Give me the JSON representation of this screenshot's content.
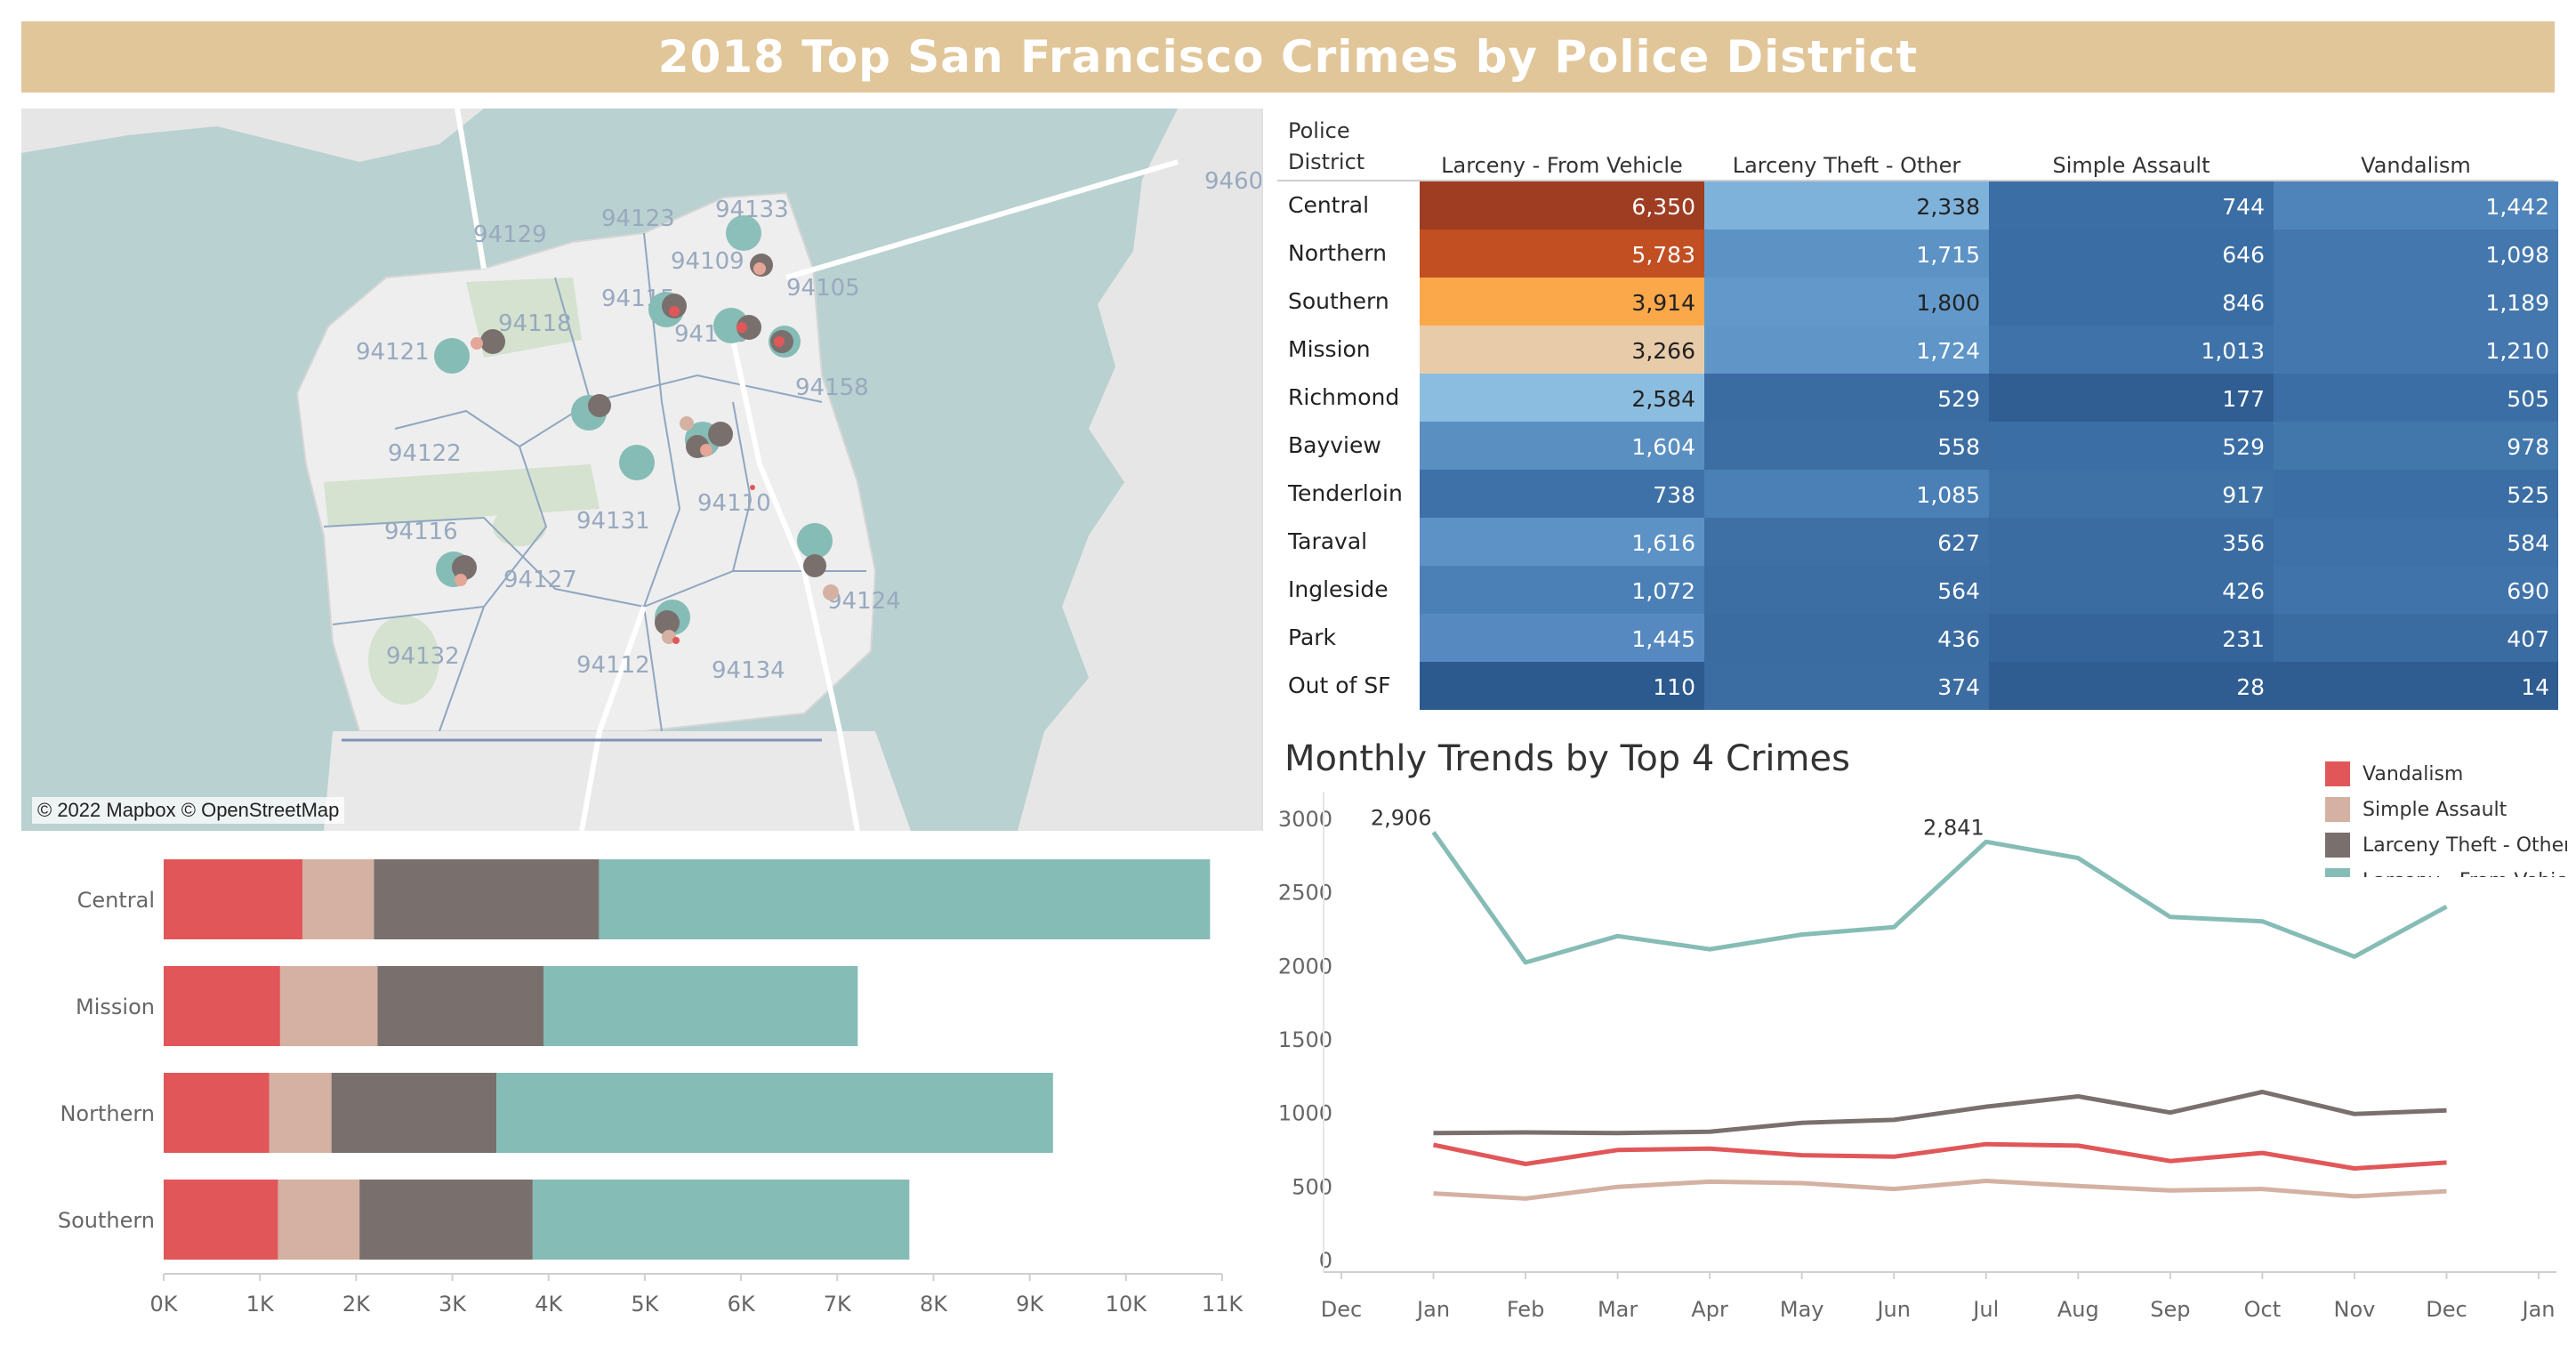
{
  "title": "2018 Top San Francisco Crimes by Police District",
  "colors": {
    "banner": "#e1c699",
    "vandalism": "#e15759",
    "simple_assault": "#d4b1a2",
    "larceny_theft_other": "#79706e",
    "larceny_from_vehicle": "#86bcb6"
  },
  "map": {
    "credit": "© 2022 Mapbox © OpenStreetMap",
    "zip_labels": [
      "94123",
      "94133",
      "94129",
      "94109",
      "94105",
      "94118",
      "94115",
      "94108",
      "94121",
      "94158",
      "94122",
      "94110",
      "94116",
      "94131",
      "94127",
      "94124",
      "94132",
      "94112",
      "94134",
      "9460"
    ],
    "markers": [
      {
        "district": "Central",
        "circles": [
          "larceny-from-vehicle",
          "larceny-theft-other",
          "simple-assault"
        ]
      },
      {
        "district": "Northern",
        "circles": [
          "larceny-from-vehicle",
          "larceny-theft-other"
        ]
      },
      {
        "district": "Southern",
        "circles": [
          "larceny-from-vehicle",
          "larceny-theft-other"
        ]
      },
      {
        "district": "Mission",
        "circles": [
          "larceny-from-vehicle",
          "larceny-theft-other"
        ]
      }
    ]
  },
  "heatmap": {
    "header_district": [
      "Police",
      "District"
    ],
    "columns": [
      "Larceny - From Vehicle",
      "Larceny Theft - Other",
      "Simple Assault",
      "Vandalism"
    ],
    "rows": [
      {
        "district": "Central",
        "values": [
          "6,350",
          "2,338",
          "744",
          "1,442"
        ]
      },
      {
        "district": "Northern",
        "values": [
          "5,783",
          "1,715",
          "646",
          "1,098"
        ]
      },
      {
        "district": "Southern",
        "values": [
          "3,914",
          "1,800",
          "846",
          "1,189"
        ]
      },
      {
        "district": "Mission",
        "values": [
          "3,266",
          "1,724",
          "1,013",
          "1,210"
        ]
      },
      {
        "district": "Richmond",
        "values": [
          "2,584",
          "529",
          "177",
          "505"
        ]
      },
      {
        "district": "Bayview",
        "values": [
          "1,604",
          "558",
          "529",
          "978"
        ]
      },
      {
        "district": "Tenderloin",
        "values": [
          "738",
          "1,085",
          "917",
          "525"
        ]
      },
      {
        "district": "Taraval",
        "values": [
          "1,616",
          "627",
          "356",
          "584"
        ]
      },
      {
        "district": "Ingleside",
        "values": [
          "1,072",
          "564",
          "426",
          "690"
        ]
      },
      {
        "district": "Park",
        "values": [
          "1,445",
          "436",
          "231",
          "407"
        ]
      },
      {
        "district": "Out of SF",
        "values": [
          "110",
          "374",
          "28",
          "14"
        ]
      }
    ],
    "cell_colors": [
      [
        "#9e3d22",
        "#7fb2da",
        "#3b6ea5",
        "#4f84ba"
      ],
      [
        "#c14f22",
        "#5d92c4",
        "#3a6da4",
        "#4477ad"
      ],
      [
        "#fba84a",
        "#6399ca",
        "#3a6da4",
        "#4477ad"
      ],
      [
        "#e8ccaa",
        "#5f95c7",
        "#3f72a8",
        "#4477ad"
      ],
      [
        "#8bbde0",
        "#3a6ba1",
        "#305e92",
        "#3b6ea5"
      ],
      [
        "#5a8fc2",
        "#3c6da3",
        "#3b6ea5",
        "#4277ac"
      ],
      [
        "#3e71a7",
        "#4a80b6",
        "#3e71a6",
        "#3b6ea5"
      ],
      [
        "#5c92c5",
        "#3e70a6",
        "#3a6ca2",
        "#3e71a7"
      ],
      [
        "#4a80b6",
        "#3c6ea3",
        "#3a6ca2",
        "#4073a9"
      ],
      [
        "#5689bf",
        "#3a6ba1",
        "#35649a",
        "#3a6ba1"
      ],
      [
        "#2c5a8e",
        "#3b6ca2",
        "#2f5d91",
        "#2f5d91"
      ]
    ],
    "text_colors": [
      [
        "#ffffff",
        "#222222",
        "#ffffff",
        "#ffffff"
      ],
      [
        "#ffffff",
        "#ffffff",
        "#ffffff",
        "#ffffff"
      ],
      [
        "#222222",
        "#222222",
        "#ffffff",
        "#ffffff"
      ],
      [
        "#222222",
        "#ffffff",
        "#ffffff",
        "#ffffff"
      ],
      [
        "#222222",
        "#ffffff",
        "#ffffff",
        "#ffffff"
      ],
      [
        "#ffffff",
        "#ffffff",
        "#ffffff",
        "#ffffff"
      ],
      [
        "#ffffff",
        "#ffffff",
        "#ffffff",
        "#ffffff"
      ],
      [
        "#ffffff",
        "#ffffff",
        "#ffffff",
        "#ffffff"
      ],
      [
        "#ffffff",
        "#ffffff",
        "#ffffff",
        "#ffffff"
      ],
      [
        "#ffffff",
        "#ffffff",
        "#ffffff",
        "#ffffff"
      ],
      [
        "#ffffff",
        "#ffffff",
        "#ffffff",
        "#ffffff"
      ]
    ]
  },
  "chart_data": [
    {
      "type": "bar",
      "orientation": "horizontal",
      "stacked": true,
      "categories": [
        "Central",
        "Mission",
        "Northern",
        "Southern"
      ],
      "series": [
        {
          "name": "Vandalism",
          "color": "#e15759",
          "values": [
            1442,
            1210,
            1098,
            1189
          ]
        },
        {
          "name": "Simple Assault",
          "color": "#d4b1a2",
          "values": [
            744,
            1013,
            646,
            846
          ]
        },
        {
          "name": "Larceny Theft - Other",
          "color": "#79706e",
          "values": [
            2338,
            1724,
            1715,
            1800
          ]
        },
        {
          "name": "Larceny - From Vehicle",
          "color": "#86bcb6",
          "values": [
            6350,
            3266,
            5783,
            3914
          ]
        }
      ],
      "xlim": [
        0,
        11000
      ],
      "ticks": [
        0,
        1000,
        2000,
        3000,
        4000,
        5000,
        6000,
        7000,
        8000,
        9000,
        10000,
        11000
      ],
      "tick_labels": [
        "0K",
        "1K",
        "2K",
        "3K",
        "4K",
        "5K",
        "6K",
        "7K",
        "8K",
        "9K",
        "10K",
        "11K"
      ],
      "grid": false
    },
    {
      "type": "line",
      "title": "Monthly Trends by Top 4 Crimes",
      "x": [
        "Dec",
        "Jan",
        "Feb",
        "Mar",
        "Apr",
        "May",
        "Jun",
        "Jul",
        "Aug",
        "Sep",
        "Oct",
        "Nov",
        "Dec",
        "Jan"
      ],
      "ylim": [
        0,
        3000
      ],
      "yticks": [
        0,
        500,
        1000,
        1500,
        2000,
        2500,
        3000
      ],
      "legend_position": "top-right",
      "series": [
        {
          "name": "Vandalism",
          "color": "#e15759",
          "values": [
            null,
            780,
            650,
            745,
            755,
            710,
            700,
            785,
            775,
            670,
            725,
            620,
            660,
            null
          ]
        },
        {
          "name": "Simple Assault",
          "color": "#d4b1a2",
          "values": [
            null,
            450,
            415,
            495,
            530,
            520,
            480,
            535,
            500,
            470,
            480,
            430,
            465,
            null
          ]
        },
        {
          "name": "Larceny Theft - Other",
          "color": "#79706e",
          "values": [
            null,
            860,
            865,
            860,
            870,
            930,
            950,
            1040,
            1110,
            1000,
            1140,
            990,
            1015,
            null
          ]
        },
        {
          "name": "Larceny - From Vehicle",
          "color": "#86bcb6",
          "values": [
            null,
            2906,
            2020,
            2200,
            2110,
            2210,
            2260,
            2841,
            2730,
            2330,
            2300,
            2060,
            2400,
            null
          ]
        }
      ],
      "annotations": [
        {
          "x": "Jan",
          "value": "2,906"
        },
        {
          "x": "Jul",
          "value": "2,841"
        }
      ]
    }
  ]
}
